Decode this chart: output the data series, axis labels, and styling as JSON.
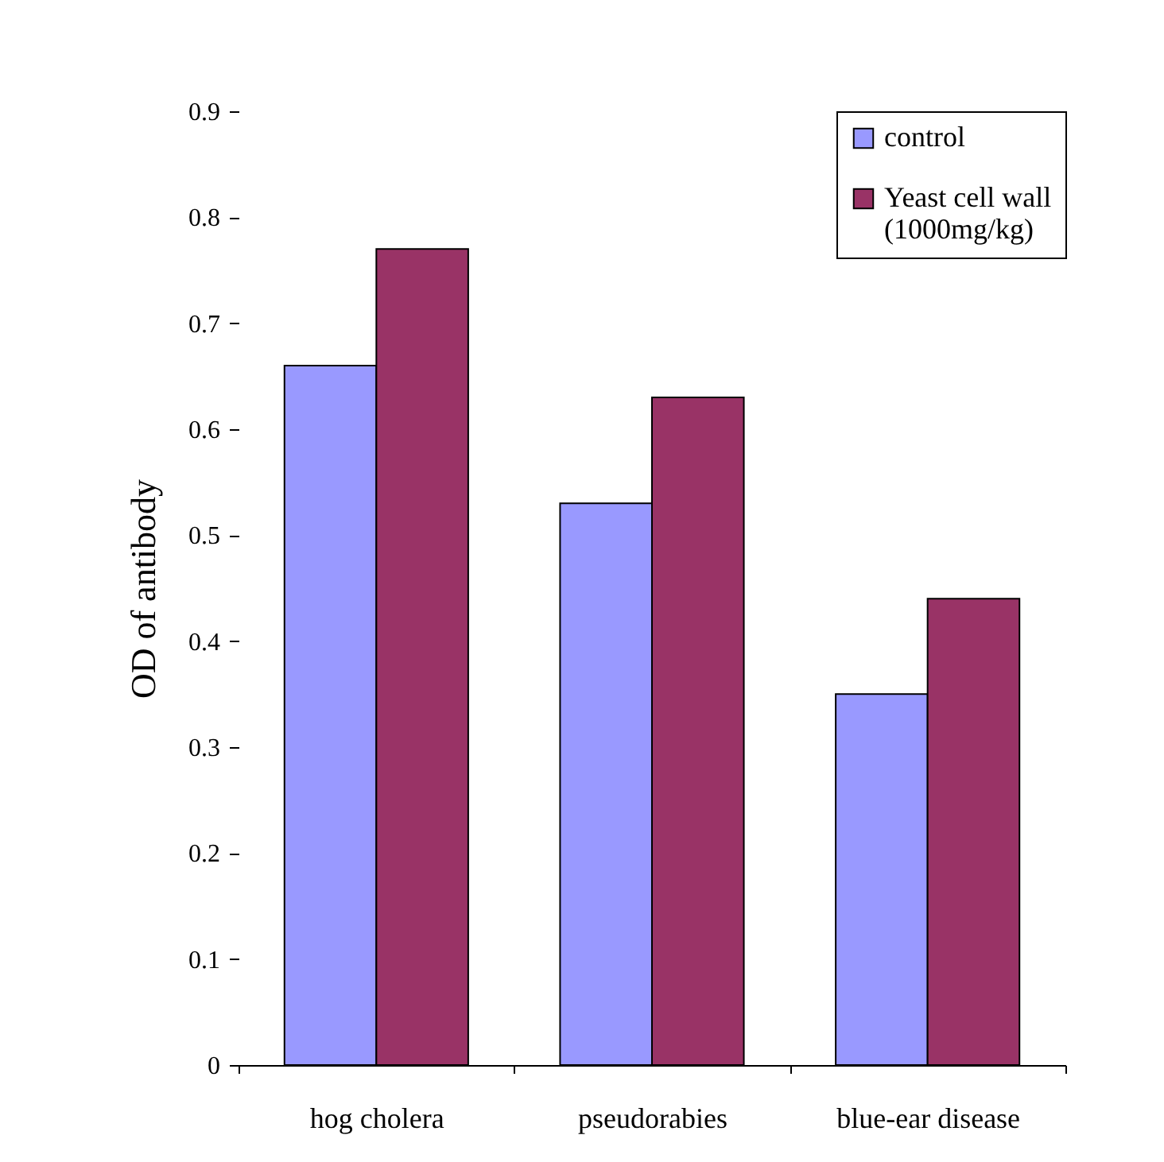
{
  "chart_data": {
    "type": "bar",
    "ylabel": "OD of antibody",
    "categories": [
      "hog cholera",
      "pseudorabies",
      "blue-ear disease"
    ],
    "series": [
      {
        "name": "control",
        "color": "#9999ff",
        "values": [
          0.66,
          0.53,
          0.35
        ]
      },
      {
        "name": "Yeast cell wall (1000mg/kg)",
        "color": "#993366",
        "values": [
          0.77,
          0.63,
          0.44
        ]
      }
    ],
    "ylim": [
      0,
      0.9
    ],
    "yticks": [
      0,
      0.1,
      0.2,
      0.3,
      0.4,
      0.5,
      0.6,
      0.7,
      0.8,
      0.9
    ],
    "grid": false,
    "legend": "top right"
  }
}
